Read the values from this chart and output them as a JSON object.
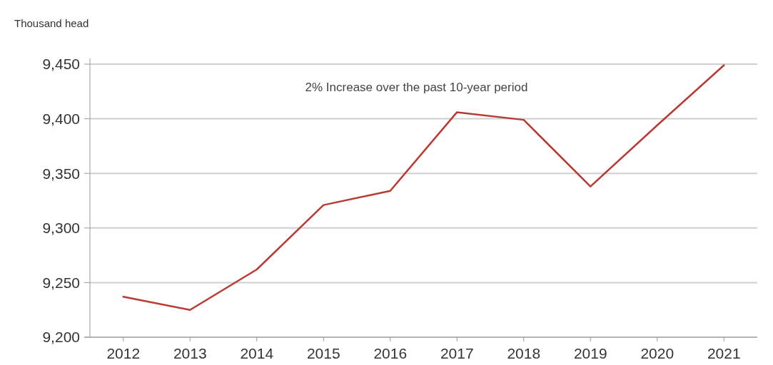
{
  "chart_data": {
    "type": "line",
    "ylabel": "Thousand head",
    "annotations": [
      "2% Increase over the past 10-year period"
    ],
    "categories": [
      "2012",
      "2013",
      "2014",
      "2015",
      "2016",
      "2017",
      "2018",
      "2019",
      "2020",
      "2021"
    ],
    "series": [
      {
        "color": "#b83a32",
        "values": [
          9237,
          9225,
          9262,
          9321,
          9334,
          9406,
          9399,
          9338,
          9394,
          9449
        ]
      }
    ],
    "ylim": [
      9200,
      9450
    ],
    "yticks": [
      {
        "value": 9200,
        "label": "9,200"
      },
      {
        "value": 9250,
        "label": "9,250"
      },
      {
        "value": 9300,
        "label": "9,300"
      },
      {
        "value": 9350,
        "label": "9,350"
      },
      {
        "value": 9400,
        "label": "9,400"
      },
      {
        "value": 9450,
        "label": "9,450"
      }
    ],
    "grid": "y",
    "marker": "none",
    "line_style": "solid"
  }
}
